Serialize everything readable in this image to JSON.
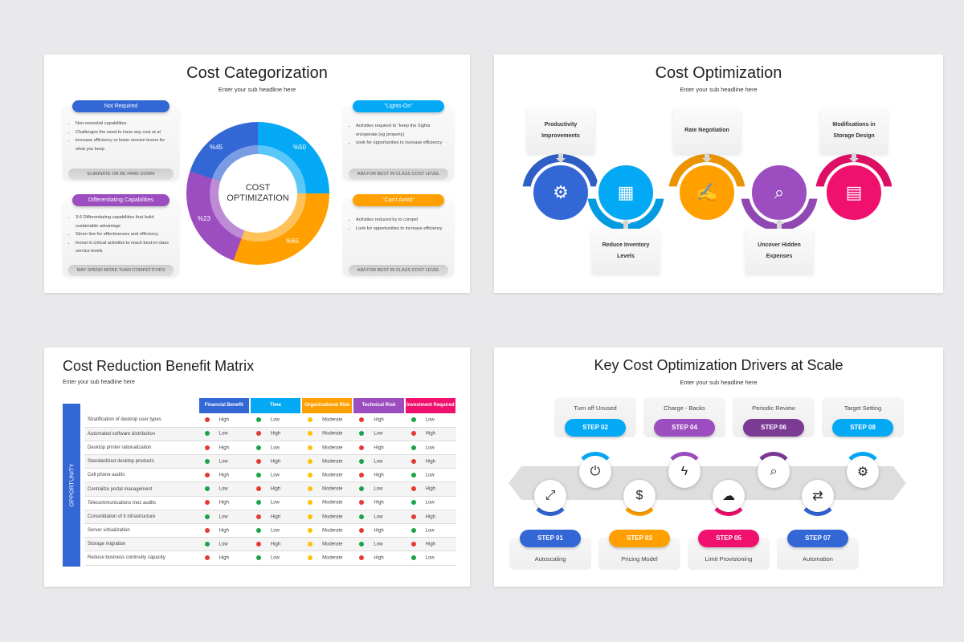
{
  "slide1": {
    "title": "Cost Categorization",
    "subtitle": "Enter your sub headline here",
    "center_label": "COST\nOPTIMIZATION",
    "cards": [
      {
        "header": "Not Required",
        "color": "#3367d6",
        "bullets": [
          "Non-essential capabilities",
          "Challenges the need to have any cost at al",
          "increase efficiency  or lower service levers for what you keep"
        ],
        "footer": "ELIMINATE OR BE PARE DOWN"
      },
      {
        "header": "Differentiating Capabilities",
        "color": "#9c4dc0",
        "bullets": [
          "3-6 Differentiating capabilities that build sustainable advantage",
          "Strom line for effectiveness  and efficiency",
          "Invest in critical activities to reach best-in-class service levels"
        ],
        "footer": "MAY SPEND MORE THAN COMPETITORS"
      },
      {
        "header": "\"Lights-On\"",
        "color": "#03a9f4",
        "bullets": [
          "Activities required to \"keep the Sights on/operate (eg property)",
          "sook for opportunities to increase efficiency"
        ],
        "footer": "AIM FOR BEST IN CLASS COST LEVEL"
      },
      {
        "header": "\"Can't Avoid\"",
        "color": "#ffa000",
        "bullets": [
          "Activities reduced by to compel",
          "Look for opportunities to increase efficiency"
        ],
        "footer": "AIM FOR BEST IN CLASS COST LEVEL"
      }
    ],
    "segments": [
      {
        "label": "%45",
        "color": "#3367d6"
      },
      {
        "label": "%50",
        "color": "#03a9f4"
      },
      {
        "label": "%65",
        "color": "#ffa000"
      },
      {
        "label": "%23",
        "color": "#9c4dc0"
      }
    ]
  },
  "slide2": {
    "title": "Cost Optimization",
    "subtitle": "Enter your sub headline here",
    "items": [
      {
        "label": "Productivity Improvements",
        "color": "#3367d6",
        "icon": "gear-growth-icon"
      },
      {
        "label": "Reduce Inventory Levels",
        "color": "#03a9f4",
        "icon": "inventory-board-icon"
      },
      {
        "label": "Rate Negotiation",
        "color": "#ffa000",
        "icon": "handshake-contract-icon"
      },
      {
        "label": "Uncover Hidden Expenses",
        "color": "#9c4dc0",
        "icon": "report-search-icon"
      },
      {
        "label": "Modifications in Storage Design",
        "color": "#f0106e",
        "icon": "storage-pallet-icon"
      }
    ]
  },
  "slide3": {
    "title": "Cost Reduction Benefit Matrix",
    "subtitle": "Enter your sub headline here",
    "side_label": "OPPORTUNITY",
    "columns": [
      {
        "label": "Financial Benefit",
        "color": "#3367d6"
      },
      {
        "label": "Time",
        "color": "#03a9f4"
      },
      {
        "label": "Organizational Risk",
        "color": "#ffa000"
      },
      {
        "label": "Technical Risk",
        "color": "#9c4dc0"
      },
      {
        "label": "Investment Required",
        "color": "#f0106e"
      }
    ],
    "level_colors": {
      "High": "#e53935",
      "Low": "#1aa34a",
      "Moderate": "#ffc107"
    },
    "rows": [
      {
        "name": "Stratification of desktop user types",
        "values": [
          "High",
          "Low",
          "Moderate",
          "High",
          "Low"
        ]
      },
      {
        "name": "Automated software distribution",
        "values": [
          "Low",
          "High",
          "Moderate",
          "Low",
          "High"
        ]
      },
      {
        "name": "Desktop printer rationalization",
        "values": [
          "High",
          "Low",
          "Moderate",
          "High",
          "Low"
        ]
      },
      {
        "name": "Standardized desktop products",
        "values": [
          "Low",
          "High",
          "Moderate",
          "Low",
          "High"
        ]
      },
      {
        "name": "Cell phone audits",
        "values": [
          "High",
          "Low",
          "Moderate",
          "High",
          "Low"
        ]
      },
      {
        "name": "Centralize portal management",
        "values": [
          "Low",
          "High",
          "Moderate",
          "Low",
          "High"
        ]
      },
      {
        "name": "Telecommunications Inez audits",
        "values": [
          "High",
          "Low",
          "Moderate",
          "High",
          "Low"
        ]
      },
      {
        "name": "Consolidation of it infrastructure",
        "values": [
          "Low",
          "High",
          "Moderate",
          "Low",
          "High"
        ]
      },
      {
        "name": "Server virtualization",
        "values": [
          "High",
          "Low",
          "Moderate",
          "High",
          "Low"
        ]
      },
      {
        "name": "Storage migration",
        "values": [
          "Low",
          "High",
          "Moderate",
          "Low",
          "High"
        ]
      },
      {
        "name": "Reduce business continuity capacity",
        "values": [
          "High",
          "Low",
          "Moderate",
          "High",
          "Low"
        ]
      }
    ]
  },
  "slide4": {
    "title": "Key Cost Optimization Drivers at Scale",
    "subtitle": "Enter your sub headline here",
    "steps": [
      {
        "step": "STEP 01",
        "label": "Autoscaling",
        "color": "#3367d6",
        "icon": "resize-icon",
        "glyph": "⤢"
      },
      {
        "step": "STEP 02",
        "label": "Turn off Unused",
        "color": "#03a9f4",
        "icon": "power-icon",
        "glyph": "⏻"
      },
      {
        "step": "STEP 03",
        "label": "Pricing Model",
        "color": "#ffa000",
        "icon": "price-tag-icon",
        "glyph": "$"
      },
      {
        "step": "STEP 04",
        "label": "Charge - Backs",
        "color": "#9c4dc0",
        "icon": "charge-icon",
        "glyph": "ϟ"
      },
      {
        "step": "STEP 05",
        "label": "Limit Provisioning",
        "color": "#f0106e",
        "icon": "cloud-icon",
        "glyph": "☁"
      },
      {
        "step": "STEP 06",
        "label": "Periodic Review",
        "color": "#7b3a93",
        "icon": "document-search-icon",
        "glyph": "⌕"
      },
      {
        "step": "STEP 07",
        "label": "Automation",
        "color": "#3367d6",
        "icon": "automation-icon",
        "glyph": "⇄"
      },
      {
        "step": "STEP 08",
        "label": "Target Setting",
        "color": "#03a9f4",
        "icon": "target-gear-icon",
        "glyph": "⚙"
      }
    ]
  }
}
